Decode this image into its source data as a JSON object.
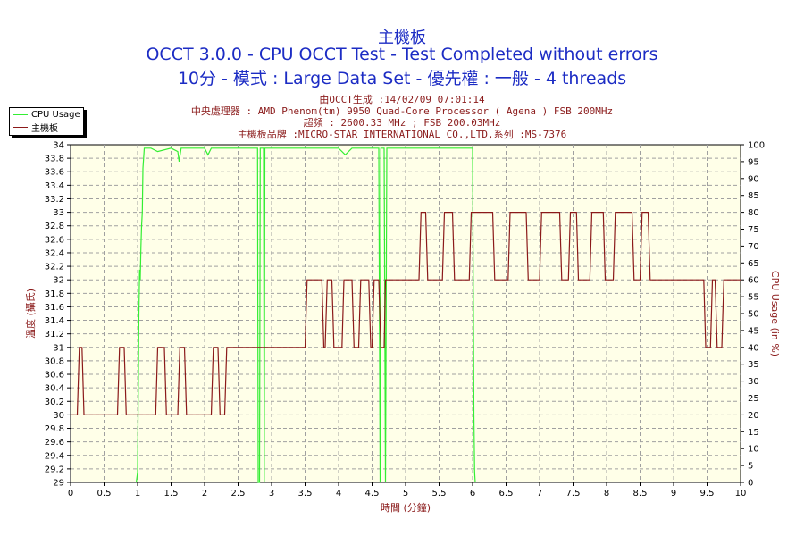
{
  "chart_data": {
    "type": "line",
    "title": "主機板",
    "subtitle": "OCCT 3.0.0 - CPU OCCT Test - Test Completed without errors",
    "subtitle2": "10分 - 模式 : Large Data Set - 優先權 : 一般 - 4 threads",
    "info_lines": [
      "由OCCT生成 :14/02/09 07:01:14",
      "中央處理器 : AMD Phenom(tm) 9950 Quad-Core Processor ( Agena ) FSB 200MHz",
      "超頻 : 2600.33 MHz ; FSB 200.03MHz",
      "主機板品牌 :MICRO-STAR INTERNATIONAL CO.,LTD,系列 :MS-7376"
    ],
    "xlabel": "時間 (分鐘)",
    "ylabel_left": "溫度 (攝氏)",
    "ylabel_right": "CPU Usage (in %)",
    "xlim": [
      0,
      10
    ],
    "ylim_left": [
      29,
      34
    ],
    "ylim_right": [
      0,
      100
    ],
    "x_ticks": [
      "0",
      "0.5",
      "1",
      "1.5",
      "2",
      "2.5",
      "3",
      "3.5",
      "4",
      "4.5",
      "5",
      "5.5",
      "6",
      "6.5",
      "7",
      "7.5",
      "8",
      "8.5",
      "9",
      "9.5",
      "10"
    ],
    "y_left_ticks": [
      "29",
      "29.2",
      "29.4",
      "29.6",
      "29.8",
      "30",
      "30.2",
      "30.4",
      "30.6",
      "30.8",
      "31",
      "31.2",
      "31.4",
      "31.6",
      "31.8",
      "32",
      "32.2",
      "32.4",
      "32.6",
      "32.8",
      "33",
      "33.2",
      "33.4",
      "33.6",
      "33.8",
      "34"
    ],
    "y_right_ticks": [
      "0",
      "5",
      "10",
      "15",
      "20",
      "25",
      "30",
      "35",
      "40",
      "45",
      "50",
      "55",
      "60",
      "65",
      "70",
      "75",
      "80",
      "85",
      "90",
      "95",
      "100"
    ],
    "grid": true,
    "legend_position": "top-left",
    "series": [
      {
        "name": "CPU Usage",
        "axis": "right",
        "color": "#33ee33",
        "x": [
          0.98,
          1.0,
          1.02,
          1.03,
          1.04,
          1.05,
          1.06,
          1.07,
          1.08,
          1.1,
          1.15,
          1.2,
          1.3,
          1.5,
          1.6,
          1.62,
          1.65,
          2.0,
          2.05,
          2.1,
          2.5,
          2.7,
          2.79,
          2.8,
          2.82,
          2.83,
          2.85,
          2.88,
          2.89,
          2.9,
          3.0,
          3.5,
          4.0,
          4.1,
          4.2,
          4.5,
          4.6,
          4.62,
          4.63,
          4.65,
          4.68,
          4.7,
          4.72,
          4.8,
          5.0,
          5.5,
          5.9,
          5.95,
          6.0,
          6.02,
          6.03,
          6.04
        ],
        "y": [
          0,
          3,
          50,
          63,
          60,
          70,
          76,
          80,
          93,
          99,
          99,
          99,
          98,
          99,
          98,
          95,
          99,
          99,
          97,
          99,
          99,
          99,
          99,
          0,
          0,
          99,
          99,
          99,
          0,
          99,
          99,
          99,
          99,
          97,
          99,
          99,
          99,
          0,
          99,
          99,
          99,
          0,
          99,
          99,
          99,
          99,
          99,
          99,
          99,
          20,
          3,
          0
        ]
      },
      {
        "name": "主機板",
        "axis": "left",
        "color": "#8b1a1a",
        "x": [
          0,
          0.1,
          0.13,
          0.17,
          0.2,
          0.7,
          0.73,
          0.8,
          0.83,
          1.0,
          1.27,
          1.3,
          1.4,
          1.43,
          1.6,
          1.63,
          1.7,
          1.73,
          2.1,
          2.13,
          2.2,
          2.23,
          2.3,
          2.33,
          3.5,
          3.53,
          3.75,
          3.78,
          3.8,
          3.83,
          3.9,
          3.93,
          4.05,
          4.08,
          4.2,
          4.23,
          4.3,
          4.33,
          4.45,
          4.48,
          4.5,
          4.53,
          4.6,
          4.63,
          4.68,
          4.7,
          5.18,
          5.2,
          5.23,
          5.3,
          5.33,
          5.55,
          5.58,
          5.7,
          5.73,
          5.95,
          5.98,
          6.3,
          6.33,
          6.53,
          6.56,
          6.8,
          6.83,
          7.0,
          7.03,
          7.3,
          7.33,
          7.43,
          7.46,
          7.55,
          7.58,
          7.75,
          7.78,
          7.95,
          7.98,
          8.1,
          8.13,
          8.38,
          8.41,
          8.5,
          8.53,
          8.62,
          8.65,
          8.75,
          8.78,
          9.45,
          9.48,
          9.55,
          9.58,
          9.62,
          9.65,
          9.72,
          9.75,
          10
        ],
        "y": [
          30,
          30,
          31,
          31,
          30,
          30,
          31,
          31,
          30,
          30,
          30,
          31,
          31,
          30,
          30,
          31,
          31,
          30,
          30,
          31,
          31,
          30,
          30,
          31,
          31,
          32,
          32,
          31,
          31,
          32,
          32,
          31,
          31,
          32,
          32,
          31,
          31,
          32,
          32,
          31,
          31,
          32,
          32,
          31,
          31,
          32,
          32,
          32,
          33,
          33,
          32,
          32,
          33,
          33,
          32,
          32,
          33,
          33,
          32,
          32,
          33,
          33,
          32,
          32,
          33,
          33,
          32,
          32,
          33,
          33,
          32,
          32,
          33,
          33,
          32,
          32,
          33,
          33,
          32,
          32,
          33,
          33,
          32,
          32,
          32,
          32,
          31,
          31,
          32,
          32,
          31,
          31,
          32,
          32
        ]
      }
    ]
  }
}
